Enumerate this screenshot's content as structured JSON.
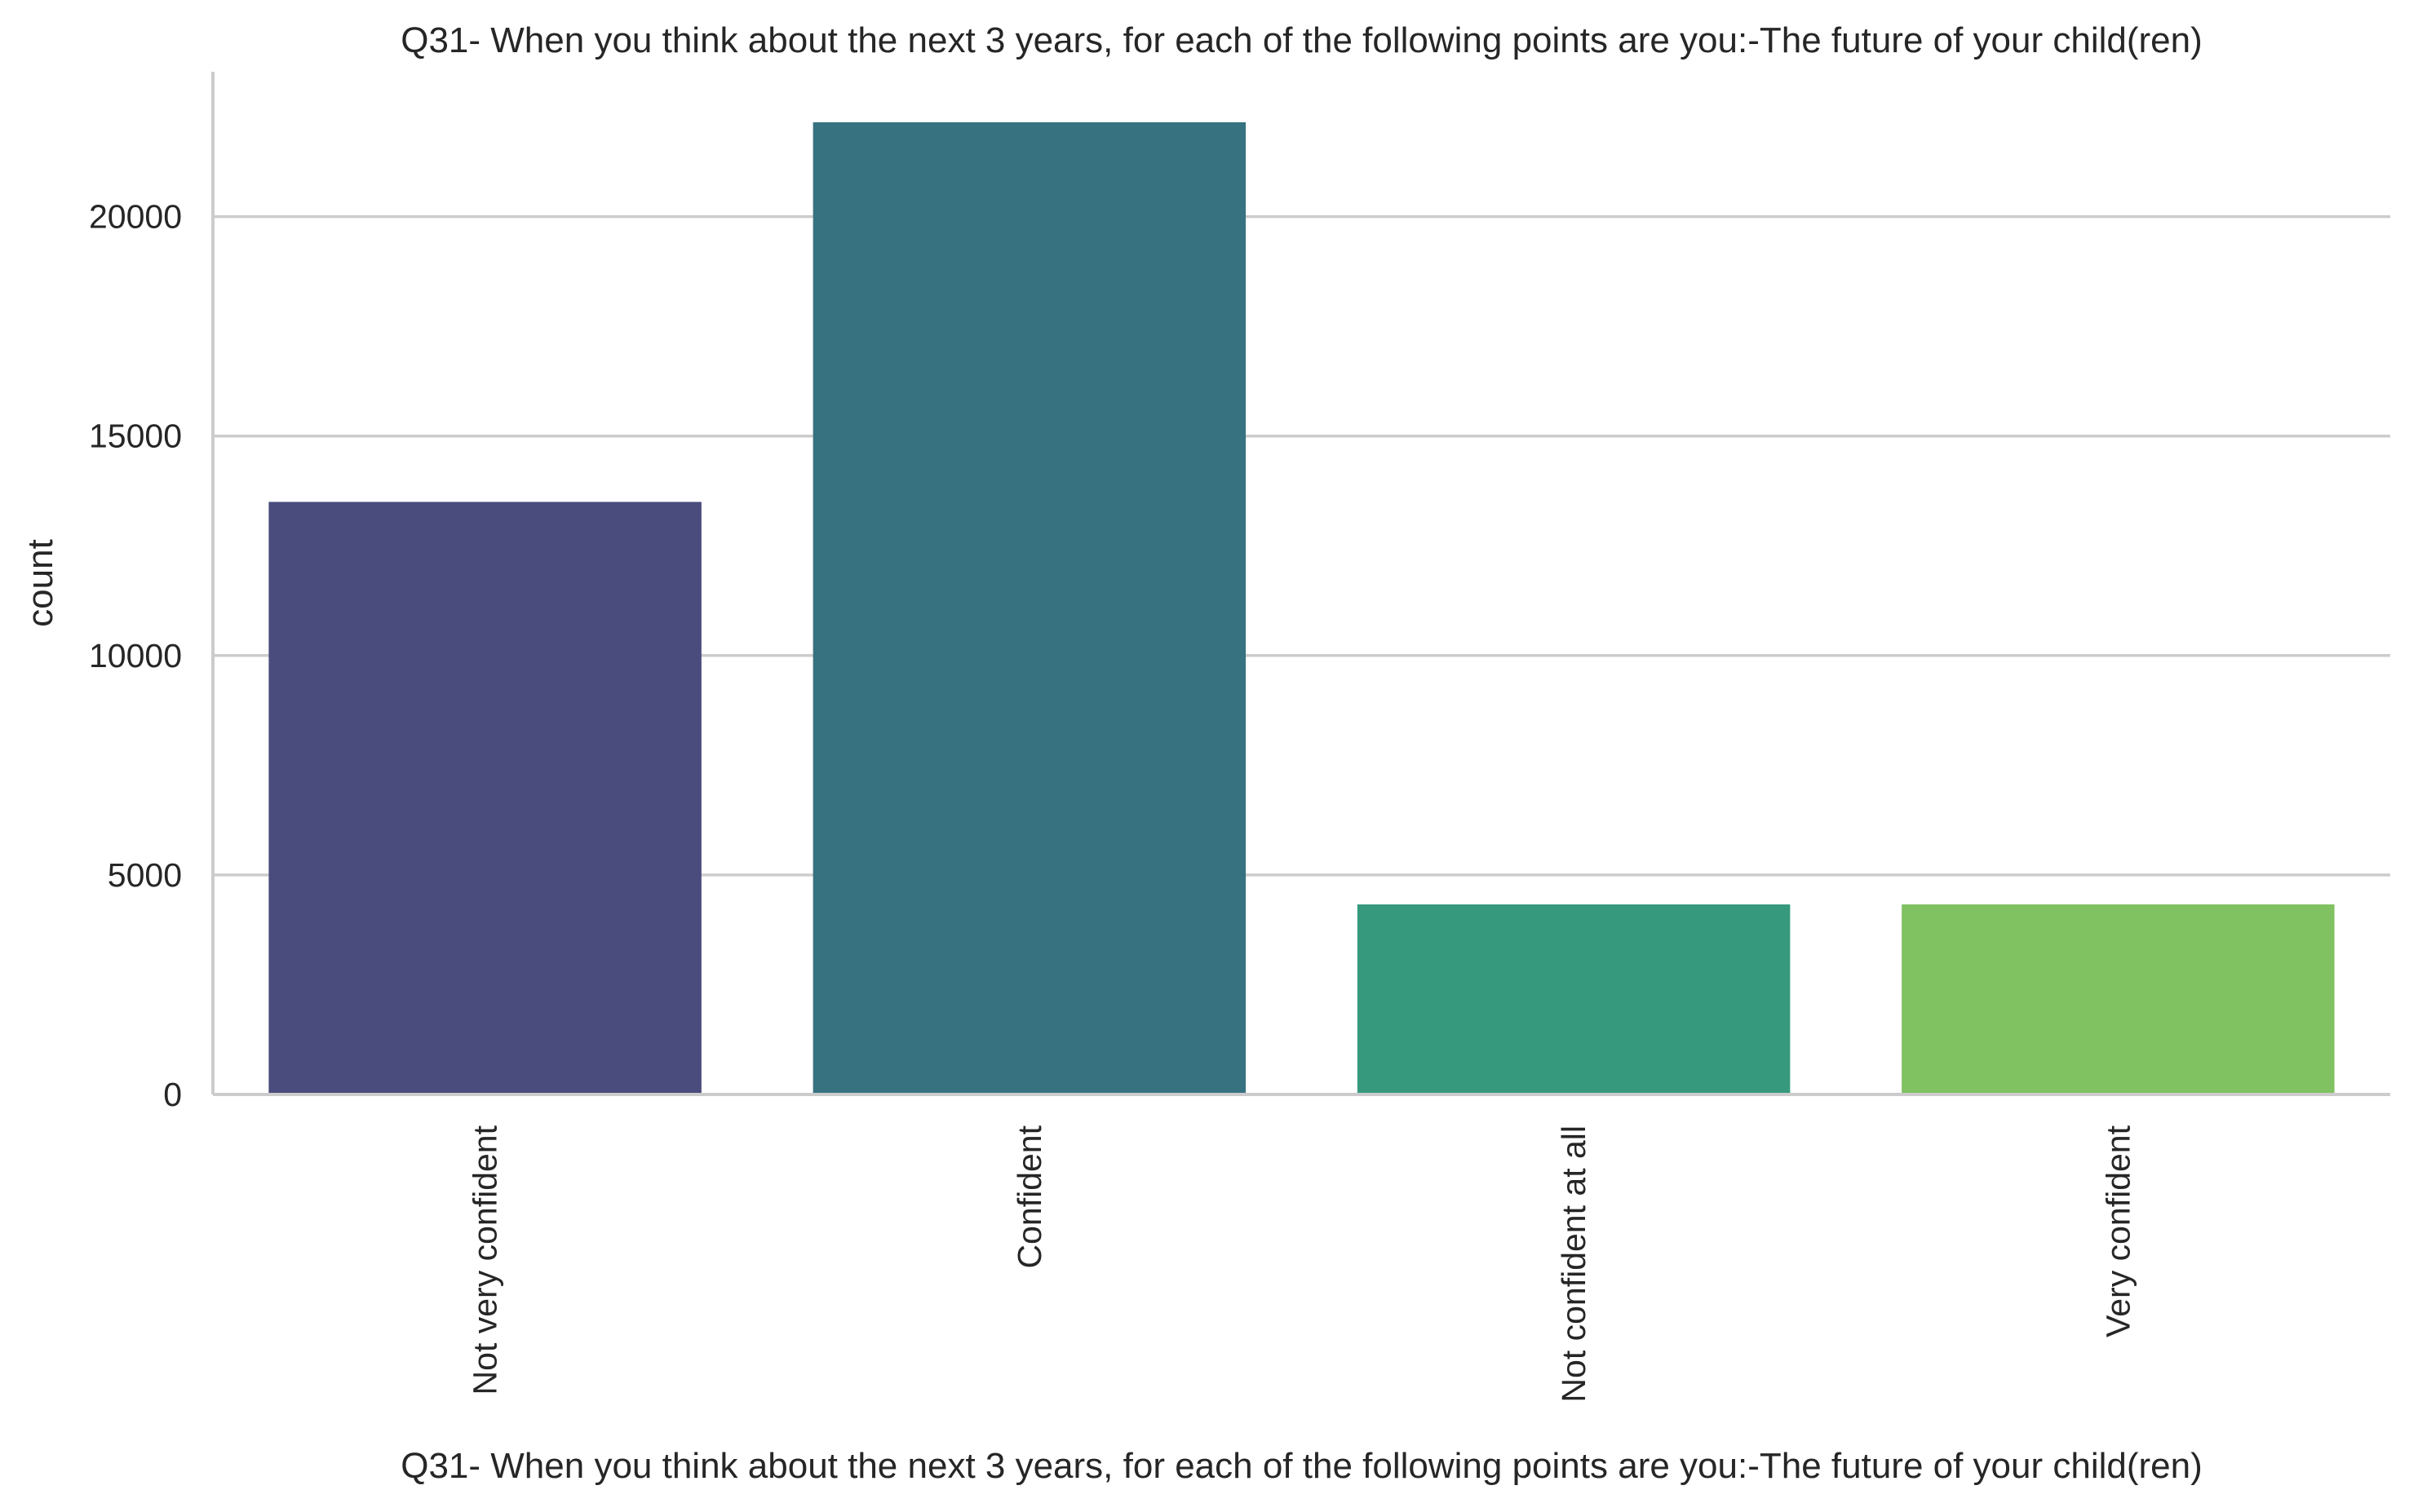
{
  "chart_data": {
    "type": "bar",
    "title": "Q31- When you think about the next 3 years, for each of the following points are you:-The future of your child(ren)",
    "xlabel": "Q31- When you think about the next 3 years, for each of the following points are you:-The future of your child(ren)",
    "ylabel": "count",
    "categories": [
      "Not very confident",
      "Confident",
      "Not confident at all",
      "Very confident"
    ],
    "values": [
      13500,
      22150,
      4330,
      4330
    ],
    "colors": [
      "#4a4c7d",
      "#377281",
      "#36997d",
      "#80c162"
    ],
    "ylim": [
      0,
      23300
    ],
    "yticks": [
      0,
      5000,
      10000,
      15000,
      20000
    ],
    "ytick_labels": [
      "0",
      "5000",
      "10000",
      "15000",
      "20000"
    ],
    "grid": "horizontal",
    "legend": "none"
  }
}
